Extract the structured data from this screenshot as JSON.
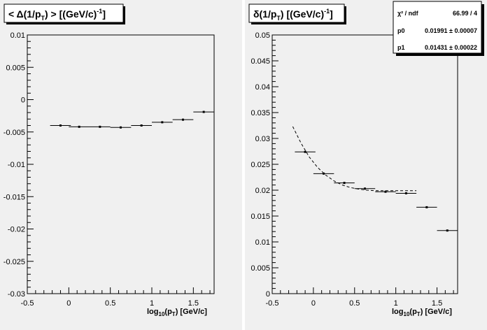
{
  "chart_data": [
    {
      "type": "scatter",
      "title": "< Δ(1/p_T) >  [(GeV/c)^-1]",
      "title_parts": {
        "pre": "< Δ(1/p",
        "sub": "T",
        "mid": ") >  [(GeV/c)",
        "sup": "-1",
        "post": "]"
      },
      "xlabel_parts": {
        "pre": "log",
        "sub1": "10",
        "mid": "(p",
        "sub2": "T",
        "post": ")  [GeV/c]"
      },
      "xlim": [
        -0.5,
        1.75
      ],
      "ylim": [
        -0.03,
        0.01
      ],
      "x_ticks": [
        "-0.5",
        "0",
        "0.5",
        "1",
        "1.5"
      ],
      "x_tick_values": [
        -0.5,
        0,
        0.5,
        1,
        1.5
      ],
      "y_ticks": [
        "-0.03",
        "-0.025",
        "-0.02",
        "-0.015",
        "-0.01",
        "-0.005",
        "0",
        "0.005",
        "0.01"
      ],
      "y_tick_values": [
        -0.03,
        -0.025,
        -0.02,
        -0.015,
        -0.01,
        -0.005,
        0,
        0.005,
        0.01
      ],
      "grid": false,
      "series": [
        {
          "x": [
            -0.1,
            0.125,
            0.375,
            0.625,
            0.875,
            1.125,
            1.375,
            1.625
          ],
          "y": [
            -0.004,
            -0.0042,
            -0.0042,
            -0.0043,
            -0.004,
            -0.0035,
            -0.0031,
            -0.0019
          ],
          "xerr": [
            0.125,
            0.125,
            0.125,
            0.125,
            0.125,
            0.125,
            0.125,
            0.125
          ]
        }
      ]
    },
    {
      "type": "scatter",
      "title": "δ(1/p_T)  [(GeV/c)^-1]",
      "title_parts": {
        "pre": "δ(1/p",
        "sub": "T",
        "mid": ")  [(GeV/c)",
        "sup": "-1",
        "post": "]"
      },
      "xlabel_parts": {
        "pre": "log",
        "sub1": "10",
        "mid": "(p",
        "sub2": "T",
        "post": ")  [GeV/c]"
      },
      "xlim": [
        -0.5,
        1.75
      ],
      "ylim": [
        0,
        0.05
      ],
      "x_ticks": [
        "-0.5",
        "0",
        "0.5",
        "1",
        "1.5"
      ],
      "x_tick_values": [
        -0.5,
        0,
        0.5,
        1,
        1.5
      ],
      "y_ticks": [
        "0",
        "0.005",
        "0.01",
        "0.015",
        "0.02",
        "0.025",
        "0.03",
        "0.035",
        "0.04",
        "0.045",
        "0.05"
      ],
      "y_tick_values": [
        0,
        0.005,
        0.01,
        0.015,
        0.02,
        0.025,
        0.03,
        0.035,
        0.04,
        0.045,
        0.05
      ],
      "grid": false,
      "series": [
        {
          "x": [
            -0.1,
            0.125,
            0.375,
            0.625,
            0.875,
            1.125,
            1.375,
            1.625
          ],
          "y": [
            0.0274,
            0.0232,
            0.0214,
            0.0203,
            0.0197,
            0.0194,
            0.0167,
            0.0122
          ],
          "xerr": [
            0.125,
            0.125,
            0.125,
            0.125,
            0.125,
            0.125,
            0.125,
            0.125
          ]
        }
      ],
      "fit": {
        "x_range": [
          -0.25,
          1.25
        ],
        "samples": {
          "x": [
            -0.25,
            -0.15,
            -0.05,
            0.05,
            0.15,
            0.25,
            0.35,
            0.45,
            0.55,
            0.65,
            0.75,
            0.85,
            0.95,
            1.05,
            1.15,
            1.25
          ],
          "y": [
            0.0323,
            0.0291,
            0.0264,
            0.0244,
            0.0229,
            0.0218,
            0.021,
            0.0205,
            0.0202,
            0.02,
            0.0199,
            0.0199,
            0.0199,
            0.0199,
            0.0199,
            0.0199
          ]
        },
        "line_style": "dashed"
      },
      "stats": {
        "rows": [
          {
            "label": "χ² / ndf",
            "value": "66.99 / 4"
          },
          {
            "label": "p0",
            "value": "0.01991 ± 0.00007"
          },
          {
            "label": "p1",
            "value": "0.01431 ± 0.00022"
          }
        ],
        "placement": "top-right"
      }
    }
  ]
}
